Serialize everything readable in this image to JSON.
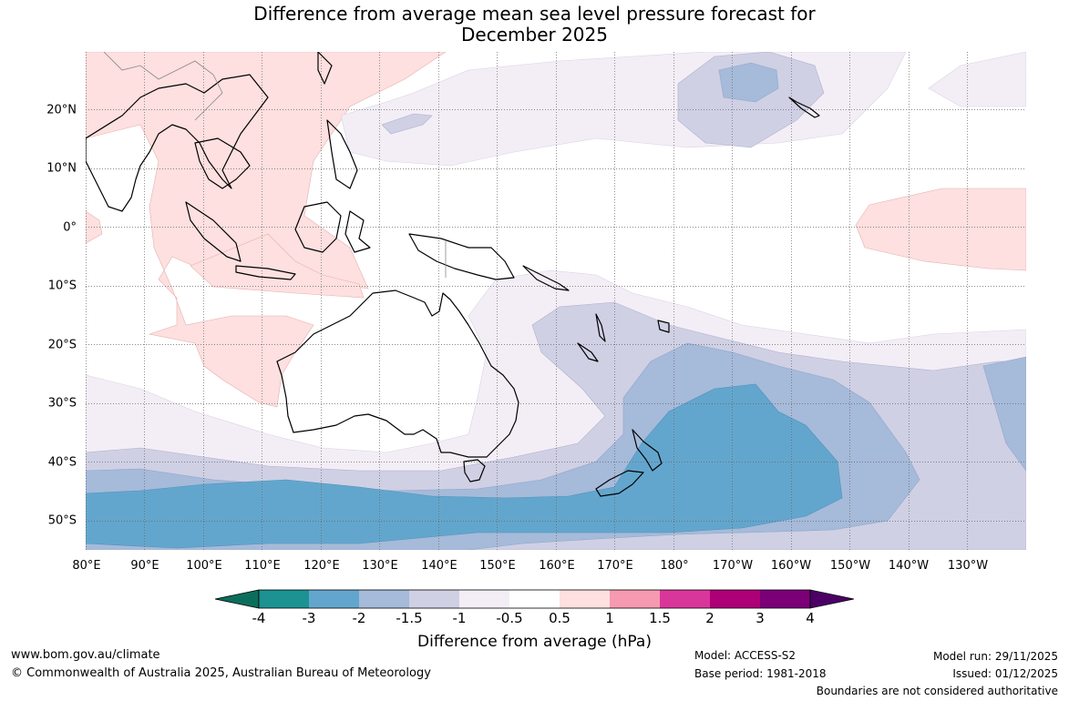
{
  "title_line1": "Difference from average mean sea level pressure forecast for",
  "title_line2": "December 2025",
  "axes": {
    "longitudes": [
      "80°E",
      "90°E",
      "100°E",
      "110°E",
      "120°E",
      "130°E",
      "140°E",
      "150°E",
      "160°E",
      "170°E",
      "180°",
      "170°W",
      "160°W",
      "150°W",
      "140°W",
      "130°W"
    ],
    "latitudes": [
      "20°N",
      "10°N",
      "0°",
      "10°S",
      "20°S",
      "30°S",
      "40°S",
      "50°S"
    ]
  },
  "colorbar": {
    "title": "Difference from average (hPa)",
    "ticks": [
      "-4",
      "-3",
      "-2",
      "-1.5",
      "-1",
      "-0.5",
      "0.5",
      "1",
      "1.5",
      "2",
      "3",
      "4"
    ],
    "colors": [
      "#0b6e5c",
      "#1c9292",
      "#63a6cd",
      "#a6bad9",
      "#cfd0e4",
      "#f3eef6",
      "#ffffff",
      "#fde0df",
      "#f59ab0",
      "#d9369b",
      "#ad0078",
      "#7b0077",
      "#4b0066"
    ]
  },
  "footer": {
    "website": "www.bom.gov.au/climate",
    "copyright": "© Commonwealth of Australia 2025, Australian Bureau of Meteorology",
    "model": "Model: ACCESS-S2",
    "base_period": "Base period: 1981-2018",
    "model_run": "Model run: 29/11/2025",
    "issued": "Issued: 01/12/2025",
    "disclaimer": "Boundaries are not considered authoritative"
  }
}
